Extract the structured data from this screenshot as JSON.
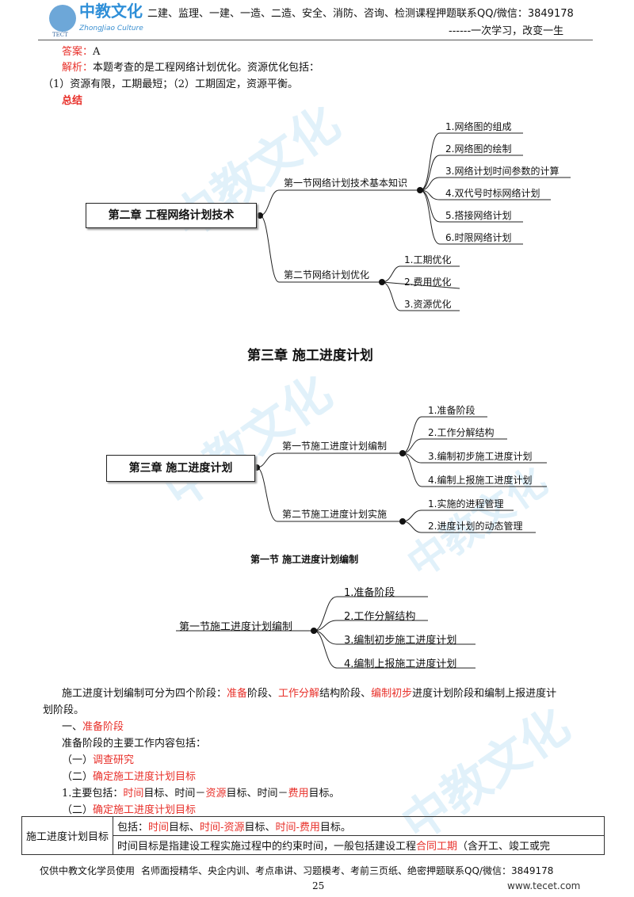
{
  "header": {
    "logo_text": "中教文化",
    "logo_sub": "ZhongJiao Culture",
    "logo_tag": "TECT",
    "line1_prefix": "二建、",
    "line1": "监理、一建、一造、二造、安全、消防、咨询、检测课程押题联系QQ/微信：3849178",
    "line2": "------一次学习，改变一生"
  },
  "answer": {
    "label": "答案：",
    "value": "A"
  },
  "analysis": {
    "label": "解析：",
    "text": "本题考查的是工程网络计划优化。资源优化包括：",
    "text2": "（1）资源有限，工期最短；（2）工期固定，资源平衡。"
  },
  "summary_label": "总结",
  "mindmap1": {
    "root": "第二章  工程网络计划技术",
    "branches": [
      {
        "label": "第一节网络计划技术基本知识",
        "items": [
          "1.网络图的组成",
          "2.网络图的绘制",
          "3.网络计划时间参数的计算",
          "4.双代号时标网络计划",
          "5.搭接网络计划",
          "6.时限网络计划"
        ]
      },
      {
        "label": "第二节网络计划优化",
        "items": [
          "1.工期优化",
          "2.费用优化",
          "3.资源优化"
        ]
      }
    ]
  },
  "chapter3_title": "第三章  施工进度计划",
  "mindmap2": {
    "root": "第三章  施工进度计划",
    "branches": [
      {
        "label": "第一节施工进度计划编制",
        "items": [
          "1.准备阶段",
          "2.工作分解结构",
          "3.编制初步施工进度计划",
          "4.编制上报施工进度计划"
        ]
      },
      {
        "label": "第二节施工进度计划实施",
        "items": [
          "1.实施的进程管理",
          "2.进度计划的动态管理"
        ]
      }
    ]
  },
  "section1_title": "第一节    施工进度计划编制",
  "mindmap3": {
    "root": "第一节施工进度计划编制",
    "items": [
      "1.准备阶段",
      "2.工作分解结构",
      "3.编制初步施工进度计划",
      "4.编制上报施工进度计划"
    ]
  },
  "para": {
    "t1": "施工进度计划编制可分为四个阶段：",
    "r1": "准备",
    "t2": "阶段、",
    "r2": "工作分解",
    "t3": "结构阶段、",
    "r3": "编制初步",
    "t4": "进度计划阶段和编制上报进度计",
    "t5": "划阶段。"
  },
  "s1": {
    "prefix": "一、",
    "red": "准备阶段"
  },
  "s1_intro": "准备阶段的主要工作内容包括：",
  "s1a": {
    "prefix": "（一）",
    "red": "调查研究"
  },
  "s1b": {
    "prefix": "（二）",
    "red": "确定施工进度计划目标"
  },
  "line_main": {
    "t1": "1.主要包括：",
    "r1": "时间",
    "t2": "目标、时间－",
    "r2": "资源",
    "t3": "目标、时间－",
    "r3": "费用",
    "t4": "目标。"
  },
  "s1c": {
    "prefix": "（二）",
    "red": "确定施工进度计划目标"
  },
  "table": {
    "head": "施工进度计划目标",
    "row1": {
      "t1": "包括：",
      "r1": "时间",
      "t2": "目标、",
      "r2": "时间-资源",
      "t3": "目标、",
      "r3": "时间-费用",
      "t4": "目标。"
    },
    "row2": {
      "t1": "时间目标是指建设工程实施过程中的约束时间，一般包括建设工程",
      "r1": "合同工期",
      "t2": "（含开工、竣工或完"
    }
  },
  "footer": {
    "text_a": "仅供中教文化学员使用",
    "text_b": "名师面授精华、央企内训、考点串讲、习题模考、考前三页纸、绝密押题联系QQ/微信：3849178",
    "page": "25",
    "site": "www.tecet.com"
  },
  "watermark": {
    "text": "中教文化",
    "sub": "ZhongJiao Culture"
  }
}
